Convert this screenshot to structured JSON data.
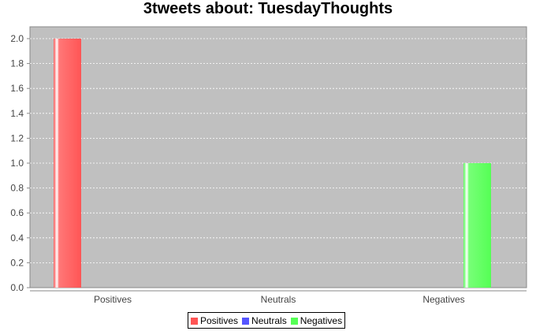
{
  "chart_data": {
    "type": "bar",
    "title": "3tweets about: TuesdayThoughts",
    "categories": [
      "Positives",
      "Neutrals",
      "Negatives"
    ],
    "series": [
      {
        "name": "Positives",
        "color": "#ff5555",
        "values": [
          2,
          null,
          null
        ]
      },
      {
        "name": "Neutrals",
        "color": "#5555ff",
        "values": [
          null,
          0,
          null
        ]
      },
      {
        "name": "Negatives",
        "color": "#55ff55",
        "values": [
          null,
          null,
          1
        ]
      }
    ],
    "ylim": [
      0,
      2.0
    ],
    "yticks": [
      "0.0",
      "0.2",
      "0.4",
      "0.6",
      "0.8",
      "1.0",
      "1.2",
      "1.4",
      "1.6",
      "1.8",
      "2.0"
    ],
    "grid": true,
    "plot_background": "#c0c0c0",
    "legend_position": "bottom-center"
  }
}
